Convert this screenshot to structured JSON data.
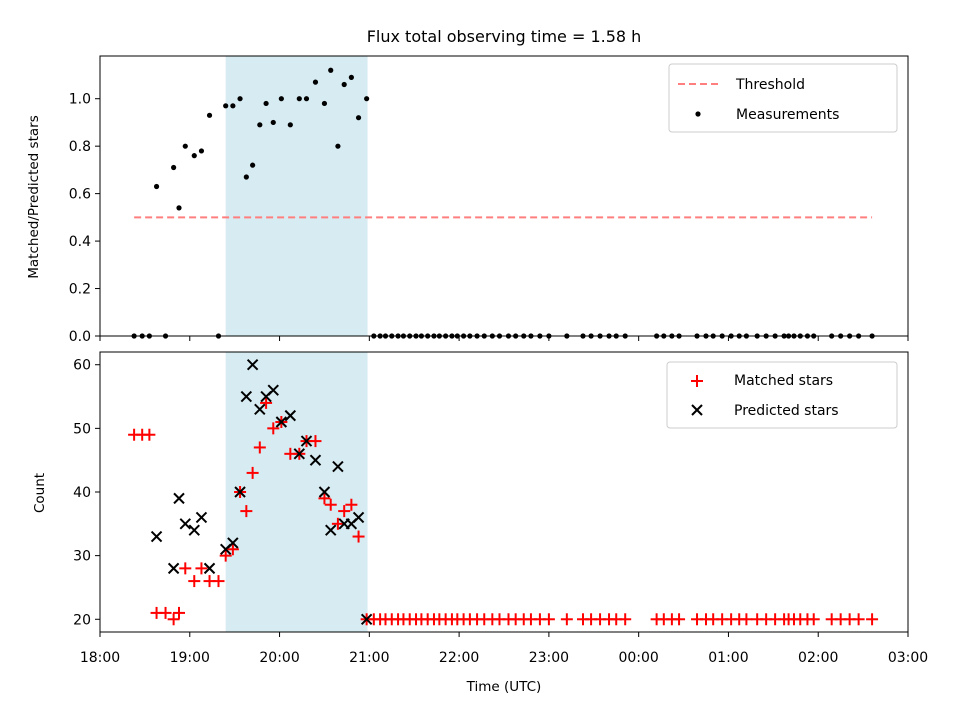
{
  "chart_data": [
    {
      "type": "scatter",
      "title": "Flux total observing time = 1.58 h",
      "xlabel": "",
      "ylabel": "Matched/Predicted stars",
      "xlim": [
        18,
        27
      ],
      "ylim": [
        0,
        1.18
      ],
      "yticks": [
        0.0,
        0.2,
        0.4,
        0.6,
        0.8,
        1.0
      ],
      "ytick_labels": [
        "0.0",
        "0.2",
        "0.4",
        "0.6",
        "0.8",
        "1.0"
      ],
      "shaded_span": [
        19.4,
        20.98
      ],
      "threshold": {
        "name": "Threshold",
        "value": 0.5,
        "x_range": [
          18.38,
          26.6
        ],
        "color": "#ff7f7f"
      },
      "series": [
        {
          "name": "Measurements",
          "color": "#000000",
          "x": [
            18.38,
            18.47,
            18.55,
            18.63,
            18.73,
            18.82,
            18.88,
            18.95,
            19.05,
            19.13,
            19.22,
            19.32,
            19.4,
            19.48,
            19.56,
            19.63,
            19.7,
            19.78,
            19.85,
            19.93,
            20.02,
            20.12,
            20.22,
            20.3,
            20.4,
            20.5,
            20.57,
            20.65,
            20.72,
            20.8,
            20.88,
            20.97,
            21.05,
            21.12,
            21.18,
            21.25,
            21.32,
            21.38,
            21.45,
            21.52,
            21.58,
            21.65,
            21.72,
            21.78,
            21.85,
            21.92,
            21.98,
            22.05,
            22.12,
            22.2,
            22.28,
            22.37,
            22.45,
            22.55,
            22.63,
            22.72,
            22.8,
            22.9,
            23.0,
            23.2,
            23.38,
            23.47,
            23.57,
            23.67,
            23.75,
            23.85,
            24.2,
            24.28,
            24.37,
            24.45,
            24.65,
            24.75,
            24.83,
            24.93,
            25.03,
            25.12,
            25.2,
            25.32,
            25.42,
            25.52,
            25.62,
            25.67,
            25.73,
            25.8,
            25.88,
            25.95,
            26.15,
            26.25,
            26.35,
            26.45,
            26.6
          ],
          "y": [
            0,
            0,
            0,
            0.63,
            0,
            0.71,
            0.54,
            0.8,
            0.76,
            0.78,
            0.93,
            0,
            0.97,
            0.97,
            1.0,
            0.67,
            0.72,
            0.89,
            0.98,
            0.9,
            1.0,
            0.89,
            1.0,
            1.0,
            1.07,
            0.98,
            1.12,
            0.8,
            1.06,
            1.09,
            0.92,
            1.0,
            0,
            0,
            0,
            0,
            0,
            0,
            0,
            0,
            0,
            0,
            0,
            0,
            0,
            0,
            0,
            0,
            0,
            0,
            0,
            0,
            0,
            0,
            0,
            0,
            0,
            0,
            0,
            0,
            0,
            0,
            0,
            0,
            0,
            0,
            0,
            0,
            0,
            0,
            0,
            0,
            0,
            0,
            0,
            0,
            0,
            0,
            0,
            0,
            0,
            0,
            0,
            0,
            0,
            0,
            0,
            0,
            0,
            0,
            0
          ]
        }
      ],
      "legend": "top-right",
      "grid": false
    },
    {
      "type": "scatter",
      "title": "",
      "xlabel": "Time (UTC)",
      "ylabel": "Count",
      "xlim": [
        18,
        27
      ],
      "ylim": [
        18,
        62
      ],
      "yticks": [
        20,
        30,
        40,
        50,
        60
      ],
      "ytick_labels": [
        "20",
        "30",
        "40",
        "50",
        "60"
      ],
      "xticks": [
        18,
        19,
        20,
        21,
        22,
        23,
        24,
        25,
        26,
        27
      ],
      "xtick_labels": [
        "18:00",
        "19:00",
        "20:00",
        "21:00",
        "22:00",
        "23:00",
        "00:00",
        "01:00",
        "02:00",
        "03:00"
      ],
      "shaded_span": [
        19.4,
        20.98
      ],
      "series": [
        {
          "name": "Matched stars",
          "marker": "+",
          "color": "#ff0000",
          "x": [
            18.38,
            18.47,
            18.55,
            18.63,
            18.73,
            18.82,
            18.88,
            18.95,
            19.05,
            19.13,
            19.22,
            19.32,
            19.4,
            19.48,
            19.56,
            19.63,
            19.7,
            19.78,
            19.85,
            19.93,
            20.02,
            20.12,
            20.22,
            20.3,
            20.4,
            20.5,
            20.57,
            20.65,
            20.72,
            20.8,
            20.88,
            20.97,
            21.05,
            21.12,
            21.18,
            21.25,
            21.32,
            21.38,
            21.45,
            21.52,
            21.58,
            21.65,
            21.72,
            21.78,
            21.85,
            21.92,
            21.98,
            22.05,
            22.12,
            22.2,
            22.28,
            22.37,
            22.45,
            22.55,
            22.63,
            22.72,
            22.8,
            22.9,
            23.0,
            23.2,
            23.38,
            23.47,
            23.57,
            23.67,
            23.75,
            23.85,
            24.2,
            24.28,
            24.37,
            24.45,
            24.65,
            24.75,
            24.83,
            24.93,
            25.03,
            25.12,
            25.2,
            25.32,
            25.42,
            25.52,
            25.62,
            25.67,
            25.73,
            25.8,
            25.88,
            25.95,
            26.15,
            26.25,
            26.35,
            26.45,
            26.6
          ],
          "y": [
            49,
            49,
            49,
            21,
            21,
            20,
            21,
            28,
            26,
            28,
            26,
            26,
            30,
            31,
            40,
            37,
            43,
            47,
            54,
            50,
            51,
            46,
            46,
            48,
            48,
            39,
            38,
            35,
            37,
            38,
            33,
            20,
            20,
            20,
            20,
            20,
            20,
            20,
            20,
            20,
            20,
            20,
            20,
            20,
            20,
            20,
            20,
            20,
            20,
            20,
            20,
            20,
            20,
            20,
            20,
            20,
            20,
            20,
            20,
            20,
            20,
            20,
            20,
            20,
            20,
            20,
            20,
            20,
            20,
            20,
            20,
            20,
            20,
            20,
            20,
            20,
            20,
            20,
            20,
            20,
            20,
            20,
            20,
            20,
            20,
            20,
            20,
            20,
            20,
            20,
            20
          ]
        },
        {
          "name": "Predicted stars",
          "marker": "x",
          "color": "#000000",
          "x": [
            18.63,
            18.82,
            18.88,
            18.95,
            19.05,
            19.13,
            19.22,
            19.4,
            19.48,
            19.56,
            19.63,
            19.7,
            19.78,
            19.85,
            19.93,
            20.02,
            20.12,
            20.22,
            20.3,
            20.4,
            20.5,
            20.57,
            20.65,
            20.72,
            20.8,
            20.88,
            20.97
          ],
          "y": [
            33,
            28,
            39,
            35,
            34,
            36,
            28,
            31,
            32,
            40,
            55,
            60,
            53,
            55,
            56,
            51,
            52,
            46,
            48,
            45,
            40,
            34,
            44,
            35,
            35,
            36,
            20
          ]
        }
      ],
      "legend": "top-right",
      "grid": false
    }
  ]
}
